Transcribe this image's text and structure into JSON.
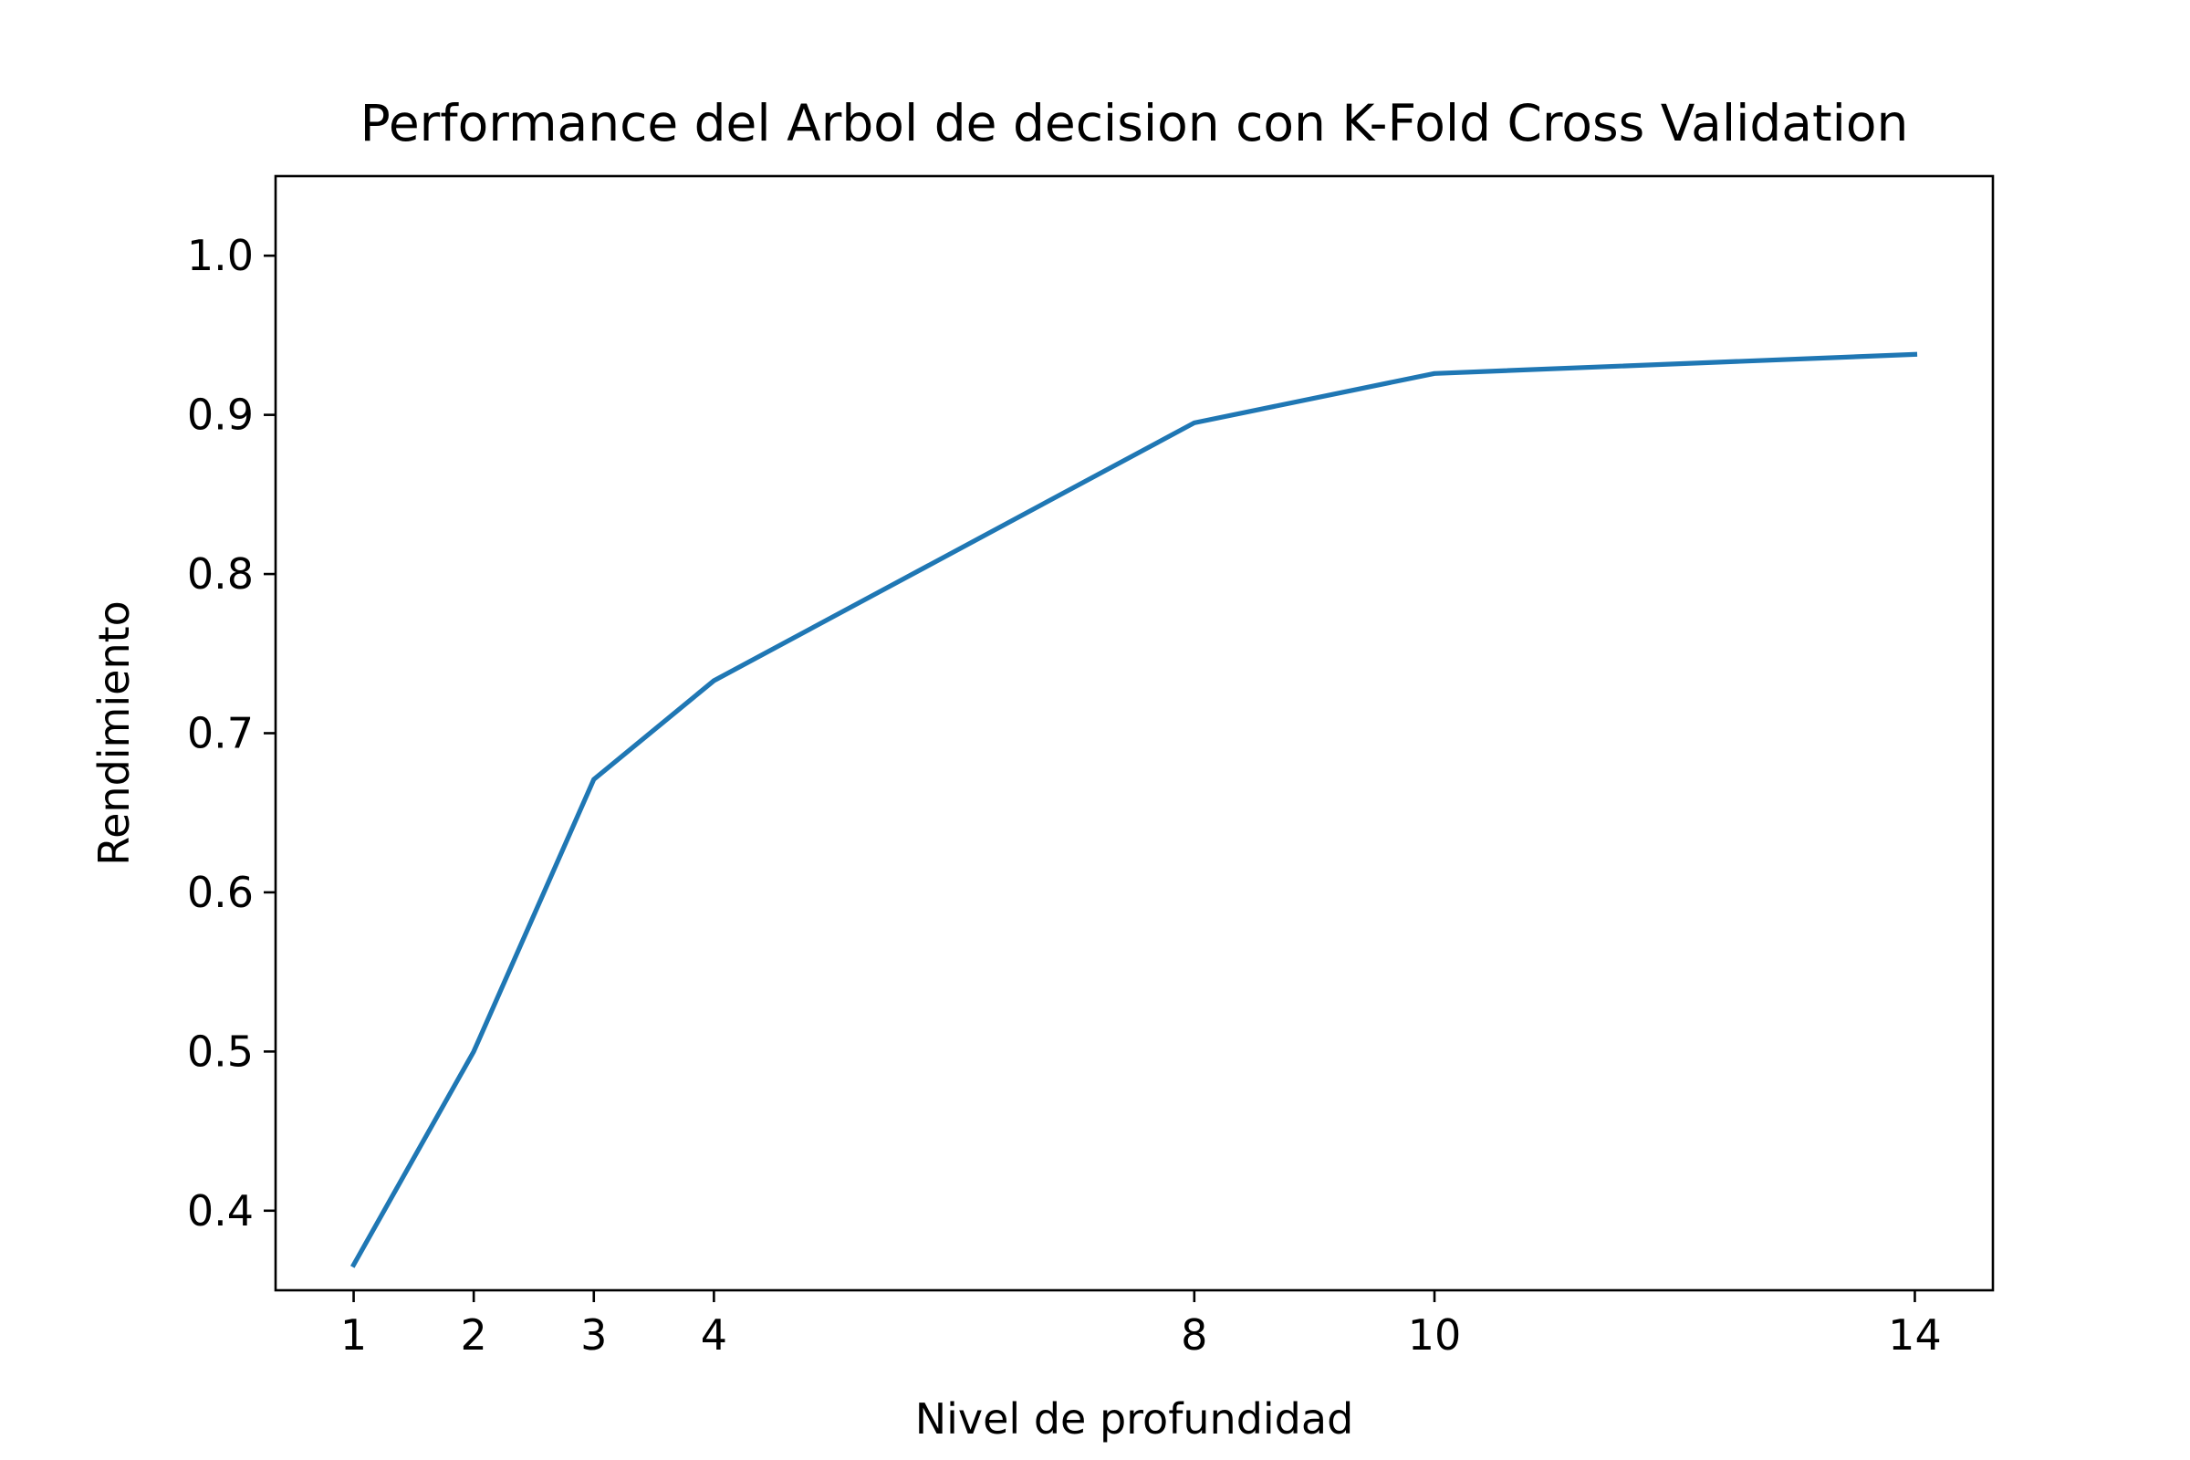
{
  "chart_data": {
    "type": "line",
    "title": "Performance del Arbol de decision con K-Fold Cross Validation",
    "xlabel": "Nivel de profundidad",
    "ylabel": "Rendimiento",
    "x": [
      1,
      2,
      3,
      4,
      8,
      10,
      14
    ],
    "x_tick_labels": [
      "1",
      "2",
      "3",
      "4",
      "8",
      "10",
      "14"
    ],
    "y_ticks": [
      0.4,
      0.5,
      0.6,
      0.7,
      0.8,
      0.9,
      1.0
    ],
    "y_tick_labels": [
      "0.4",
      "0.5",
      "0.6",
      "0.7",
      "0.8",
      "0.9",
      "1.0"
    ],
    "xlim": [
      0.35,
      14.65
    ],
    "ylim": [
      0.35,
      1.05
    ],
    "grid": false,
    "legend": false,
    "series": [
      {
        "color": "#1f77b4",
        "values": [
          0.366,
          0.5,
          0.671,
          0.733,
          0.895,
          0.926,
          0.938
        ]
      }
    ]
  }
}
